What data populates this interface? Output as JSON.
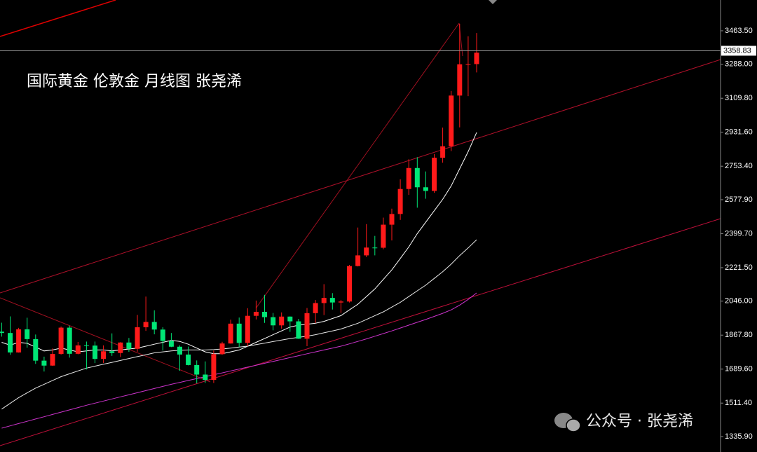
{
  "chart_data": {
    "type": "candlestick",
    "title": "国际黄金 伦敦金 月线图 张尧浠",
    "watermark": "公众号 · 张尧浠",
    "open": [
      1886,
      1879,
      1777,
      1898,
      1847,
      1734,
      1708,
      1769,
      1907,
      1770,
      1814,
      1813,
      1743,
      1783,
      1774,
      1829,
      1796,
      1909,
      1937,
      1897,
      1837,
      1807,
      1766,
      1711,
      1661,
      1633,
      1768,
      1824,
      1928,
      1827,
      1969,
      1990,
      1962,
      1919,
      1965,
      1940,
      1849,
      1983,
      2036,
      2063,
      2039,
      2044,
      2230,
      2286,
      2327,
      2326,
      2447,
      2503,
      2634,
      2744,
      2643,
      2624,
      2798,
      2858,
      3124,
      3288,
      3289
    ],
    "high": [
      1933,
      1966,
      1906,
      1959,
      1871,
      1755,
      1798,
      1913,
      1917,
      1832,
      1834,
      1834,
      1814,
      1877,
      1831,
      1853,
      1974,
      2070,
      1998,
      1909,
      1879,
      1814,
      1808,
      1735,
      1730,
      1787,
      1833,
      1949,
      1960,
      2009,
      2049,
      2079,
      1984,
      1987,
      1966,
      1953,
      2010,
      2052,
      2135,
      2088,
      2052,
      2236,
      2432,
      2450,
      2388,
      2484,
      2531,
      2685,
      2790,
      2801,
      2726,
      2817,
      2956,
      3148,
      3500,
      3435,
      3452
    ],
    "low": [
      1860,
      1765,
      1776,
      1802,
      1717,
      1677,
      1706,
      1766,
      1750,
      1767,
      1688,
      1721,
      1722,
      1759,
      1753,
      1780,
      1781,
      1890,
      1872,
      1787,
      1805,
      1681,
      1709,
      1615,
      1617,
      1617,
      1765,
      1823,
      1805,
      1810,
      1950,
      1932,
      1893,
      1902,
      1885,
      1848,
      1810,
      1931,
      1973,
      2002,
      1984,
      2039,
      2228,
      2277,
      2286,
      2318,
      2364,
      2472,
      2603,
      2536,
      2583,
      2614,
      2772,
      2833,
      2957,
      3121,
      3245
    ],
    "close": [
      1879,
      1777,
      1898,
      1847,
      1734,
      1708,
      1769,
      1907,
      1770,
      1814,
      1813,
      1743,
      1783,
      1774,
      1829,
      1796,
      1909,
      1937,
      1897,
      1837,
      1807,
      1766,
      1711,
      1661,
      1633,
      1768,
      1824,
      1928,
      1827,
      1969,
      1990,
      1962,
      1919,
      1965,
      1940,
      1849,
      1983,
      2036,
      2063,
      2039,
      2044,
      2230,
      2286,
      2327,
      2326,
      2447,
      2503,
      2634,
      2744,
      2643,
      2624,
      2798,
      2858,
      3124,
      3288,
      3289,
      3349
    ],
    "up_color": "#ff1a1a",
    "down_color": "#00e676",
    "moving_averages": [
      {
        "color": "#ffffff",
        "values": [
          1830,
          1815,
          1830,
          1825,
          1805,
          1785,
          1790,
          1800,
          1790,
          1780,
          1785,
          1790,
          1790,
          1785,
          1790,
          1795,
          1800,
          1810,
          1820,
          1830,
          1840,
          1835,
          1820,
          1800,
          1780,
          1770,
          1770,
          1780,
          1790,
          1810,
          1830,
          1850,
          1870,
          1890,
          1910,
          1920,
          1925,
          1930,
          1940,
          1955,
          1970,
          2000,
          2030,
          2070,
          2110,
          2160,
          2210,
          2270,
          2330,
          2400,
          2460,
          2520,
          2580,
          2650,
          2740,
          2830,
          2930
        ]
      },
      {
        "color": "#e8e8e8",
        "values": [
          1480,
          1510,
          1540,
          1565,
          1590,
          1610,
          1630,
          1650,
          1665,
          1680,
          1695,
          1705,
          1715,
          1725,
          1735,
          1745,
          1755,
          1765,
          1775,
          1780,
          1785,
          1788,
          1790,
          1790,
          1790,
          1792,
          1795,
          1800,
          1805,
          1810,
          1818,
          1826,
          1834,
          1842,
          1850,
          1856,
          1862,
          1870,
          1880,
          1890,
          1900,
          1915,
          1930,
          1950,
          1970,
          1990,
          2015,
          2040,
          2070,
          2100,
          2130,
          2165,
          2200,
          2240,
          2285,
          2325,
          2368
        ]
      },
      {
        "color": "#cc33cc",
        "values": [
          1380,
          1392,
          1404,
          1416,
          1428,
          1440,
          1452,
          1464,
          1476,
          1488,
          1500,
          1511,
          1522,
          1533,
          1544,
          1555,
          1566,
          1577,
          1588,
          1599,
          1610,
          1620,
          1630,
          1640,
          1650,
          1660,
          1670,
          1680,
          1690,
          1700,
          1710,
          1720,
          1730,
          1740,
          1750,
          1760,
          1770,
          1780,
          1790,
          1800,
          1810,
          1822,
          1835,
          1848,
          1862,
          1876,
          1890,
          1905,
          1920,
          1935,
          1950,
          1966,
          1982,
          2000,
          2025,
          2055,
          2089
        ]
      }
    ],
    "current_price": 3358.83,
    "ylim": [
      1255,
      3625
    ],
    "yticks": [
      {
        "value": 1335.9,
        "label": "1335.90"
      },
      {
        "value": 1511.4,
        "label": "1511.40"
      },
      {
        "value": 1689.6,
        "label": "1689.60"
      },
      {
        "value": 1867.8,
        "label": "1867.80"
      },
      {
        "value": 2046,
        "label": "2046.00"
      },
      {
        "value": 2221.5,
        "label": "2221.50"
      },
      {
        "value": 2399.7,
        "label": "2399.70"
      },
      {
        "value": 2577.9,
        "label": "2577.90"
      },
      {
        "value": 2753.4,
        "label": "2753.40"
      },
      {
        "value": 2931.6,
        "label": "2931.60"
      },
      {
        "value": 3109.8,
        "label": "3109.80"
      },
      {
        "value": 3288,
        "label": "3288.00"
      },
      {
        "value": 3463.5,
        "label": "3463.50"
      }
    ]
  }
}
